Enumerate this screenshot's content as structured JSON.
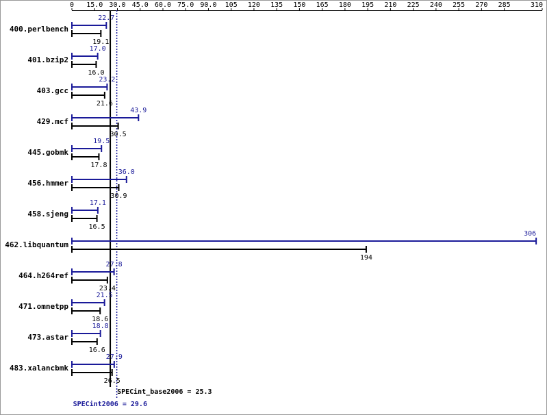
{
  "chart_data": {
    "type": "bar",
    "orientation": "horizontal",
    "categories": [
      "400.perlbench",
      "401.bzip2",
      "403.gcc",
      "429.mcf",
      "445.gobmk",
      "456.hmmer",
      "458.sjeng",
      "462.libquantum",
      "464.h264ref",
      "471.omnetpp",
      "473.astar",
      "483.xalancbmk"
    ],
    "series": [
      {
        "color": "#1a1a99",
        "values": [
          22.7,
          17.0,
          23.2,
          43.9,
          19.5,
          36.0,
          17.1,
          306,
          27.8,
          21.5,
          18.8,
          27.9
        ],
        "value_labels": [
          "22.7",
          "17.0",
          "23.2",
          "43.9",
          "19.5",
          "36.0",
          "17.1",
          "306",
          "27.8",
          "21.5",
          "18.8",
          "27.9"
        ]
      },
      {
        "color": "#000000",
        "values": [
          19.1,
          16.0,
          21.6,
          30.5,
          17.8,
          30.9,
          16.5,
          194,
          23.4,
          18.6,
          16.6,
          26.5
        ],
        "value_labels": [
          "19.1",
          "16.0",
          "21.6",
          "30.5",
          "17.8",
          "30.9",
          "16.5",
          "194",
          "23.4",
          "18.6",
          "16.6",
          "26.5"
        ]
      }
    ],
    "xlim": [
      0,
      310
    ],
    "xticks": [
      0,
      {
        "value": 15,
        "label": "15.0"
      },
      {
        "value": 30,
        "label": "30.0"
      },
      {
        "value": 45,
        "label": "45.0"
      },
      {
        "value": 60,
        "label": "60.0"
      },
      {
        "value": 75,
        "label": "75.0"
      },
      {
        "value": 90,
        "label": "90.0"
      },
      105,
      120,
      135,
      150,
      165,
      180,
      195,
      210,
      225,
      240,
      255,
      270,
      285,
      310
    ],
    "reference_lines": [
      {
        "label": "SPECint_base2006 = 25.3",
        "value": 25.3,
        "color": "#000000",
        "style": "solid"
      },
      {
        "label": "SPECint2006 = 29.6",
        "value": 29.6,
        "color": "#1a1a99",
        "style": "dotted"
      }
    ]
  }
}
